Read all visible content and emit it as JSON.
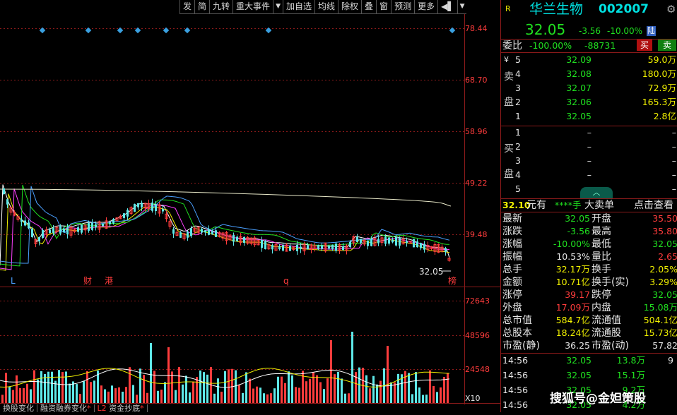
{
  "toolbar": {
    "items": [
      "发",
      "简",
      "九转",
      "重大事件",
      "▼",
      "加自选",
      "均线",
      "除权",
      "叠",
      "窗",
      "预测",
      "更多",
      "◀▌",
      "▼"
    ]
  },
  "price_axis": [
    "78.44",
    "68.70",
    "58.96",
    "49.22",
    "39.48"
  ],
  "vol_axis": [
    "72643",
    "48596",
    "24548"
  ],
  "vol_unit": "X10",
  "markers": {
    "L": "L",
    "cai": "财",
    "gang": "港",
    "q": "q",
    "bang": "榜",
    "last_price": "32.05"
  },
  "bottom_tabs": [
    {
      "label": "换股变化",
      "tag": ""
    },
    {
      "label": "融资融券变化",
      "tag": "*"
    },
    {
      "label": "资金抄底",
      "tag": "L2",
      "suffix": "*"
    }
  ],
  "colors": {
    "up": "#ff3c3c",
    "down": "#20e020",
    "vol_down": "#5ee8e8",
    "axis_red": "#8b1a1a"
  },
  "panel": {
    "badge": "R",
    "stock_name": "华兰生物",
    "stock_code": "002007",
    "price": "32.05",
    "change": "-3.56",
    "change_pct": "-10.00%",
    "limit_tag": "陆",
    "weibi_label": "委比",
    "weibi_value": "-100.00%",
    "weicha_value": "-88731",
    "buy_btn": "买",
    "sell_btn": "卖",
    "currency": "¥",
    "sell_label": [
      "卖",
      "盘"
    ],
    "buy_label": [
      "买",
      "盘"
    ],
    "sell_orders": [
      {
        "lvl": "5",
        "price": "32.09",
        "vol": "59.0万"
      },
      {
        "lvl": "4",
        "price": "32.08",
        "vol": "180.0万"
      },
      {
        "lvl": "3",
        "price": "32.07",
        "vol": "72.9万"
      },
      {
        "lvl": "2",
        "price": "32.06",
        "vol": "165.3万"
      },
      {
        "lvl": "1",
        "price": "32.05",
        "vol": "2.8亿"
      }
    ],
    "buy_orders": [
      {
        "lvl": "1",
        "price": "–",
        "vol": "–"
      },
      {
        "lvl": "2",
        "price": "–",
        "vol": "–"
      },
      {
        "lvl": "3",
        "price": "–",
        "vol": "–"
      },
      {
        "lvl": "4",
        "price": "–",
        "vol": "–"
      },
      {
        "lvl": "5",
        "price": "–",
        "vol": "–"
      }
    ],
    "big_order": {
      "price": "32.10",
      "unit": "元有",
      "stars": "****手",
      "label": "大卖单",
      "action": "点击查看"
    },
    "stats": [
      {
        "l1": "最新",
        "v1": "32.05",
        "c1": "grn",
        "l2": "开盘",
        "v2": "35.50",
        "c2": "red"
      },
      {
        "l1": "涨跌",
        "v1": "-3.56",
        "c1": "grn",
        "l2": "最高",
        "v2": "35.80",
        "c2": "red"
      },
      {
        "l1": "涨幅",
        "v1": "-10.00%",
        "c1": "grn",
        "l2": "最低",
        "v2": "32.05",
        "c2": "grn"
      },
      {
        "l1": "振幅",
        "v1": "10.53%",
        "c1": "wht",
        "l2": "量比",
        "v2": "2.65",
        "c2": "red"
      },
      {
        "l1": "总手",
        "v1": "32.17万",
        "c1": "yel",
        "l2": "换手",
        "v2": "2.05%",
        "c2": "yel"
      },
      {
        "l1": "金额",
        "v1": "10.71亿",
        "c1": "yel",
        "l2": "换手(实)",
        "v2": "3.29%",
        "c2": "yel"
      },
      {
        "l1": "涨停",
        "v1": "39.17",
        "c1": "red",
        "l2": "跌停",
        "v2": "32.05",
        "c2": "grn"
      },
      {
        "l1": "外盘",
        "v1": "17.09万",
        "c1": "red",
        "l2": "内盘",
        "v2": "15.08万",
        "c2": "grn"
      },
      {
        "l1": "总市值",
        "v1": "584.7亿",
        "c1": "yel",
        "l2": "流通值",
        "v2": "504.1亿",
        "c2": "yel"
      },
      {
        "l1": "总股本",
        "v1": "18.24亿",
        "c1": "yel",
        "l2": "流通股",
        "v2": "15.73亿",
        "c2": "yel"
      },
      {
        "l1": "市盈(静)",
        "v1": "36.25",
        "c1": "wht",
        "l2": "市盈(动)",
        "v2": "57.82",
        "c2": "wht"
      }
    ],
    "ticks": [
      {
        "time": "14:56",
        "price": "32.05",
        "vol": "13.8万",
        "extra": "9"
      },
      {
        "time": "14:56",
        "price": "32.05",
        "vol": "15.1万",
        "extra": ""
      },
      {
        "time": "14:56",
        "price": "32.05",
        "vol": "9.2万",
        "extra": ""
      },
      {
        "time": "14:56",
        "price": "32.05",
        "vol": "4.2万",
        "extra": ""
      }
    ]
  },
  "watermark": "搜狐号@金妲策股"
}
